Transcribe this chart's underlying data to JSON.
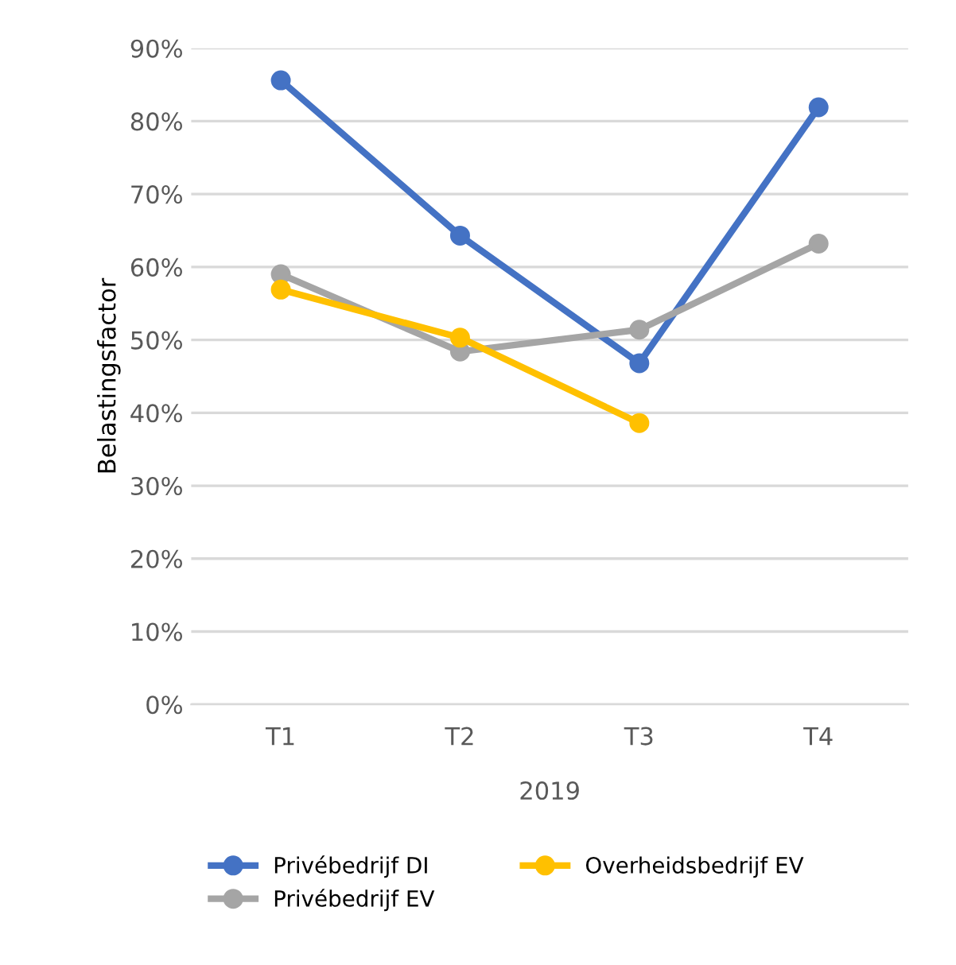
{
  "chart_data": {
    "type": "line",
    "xlabel": "2019",
    "ylabel": "Belastingsfactor",
    "categories": [
      "T1",
      "T2",
      "T3",
      "T4"
    ],
    "series": [
      {
        "name": "Privébedrijf DI",
        "color": "#4472c4",
        "values": [
          85.6,
          64.3,
          46.8,
          81.9
        ]
      },
      {
        "name": "Privébedrijf EV",
        "color": "#a5a5a5",
        "values": [
          59.0,
          48.4,
          51.4,
          63.2
        ]
      },
      {
        "name": "Overheidsbedrijf EV",
        "color": "#ffc000",
        "values": [
          56.9,
          50.3,
          38.6,
          null
        ]
      }
    ],
    "ylim": [
      0,
      90
    ],
    "yticks": [
      {
        "value": 0,
        "label": "0%"
      },
      {
        "value": 10,
        "label": "10%"
      },
      {
        "value": 20,
        "label": "20%"
      },
      {
        "value": 30,
        "label": "30%"
      },
      {
        "value": 40,
        "label": "40%"
      },
      {
        "value": 50,
        "label": "50%"
      },
      {
        "value": 60,
        "label": "60%"
      },
      {
        "value": 70,
        "label": "70%"
      },
      {
        "value": 80,
        "label": "80%"
      },
      {
        "value": 90,
        "label": "90%"
      }
    ],
    "grid": "y",
    "legend": "bottom",
    "marker": "circle",
    "line_style": "solid"
  }
}
